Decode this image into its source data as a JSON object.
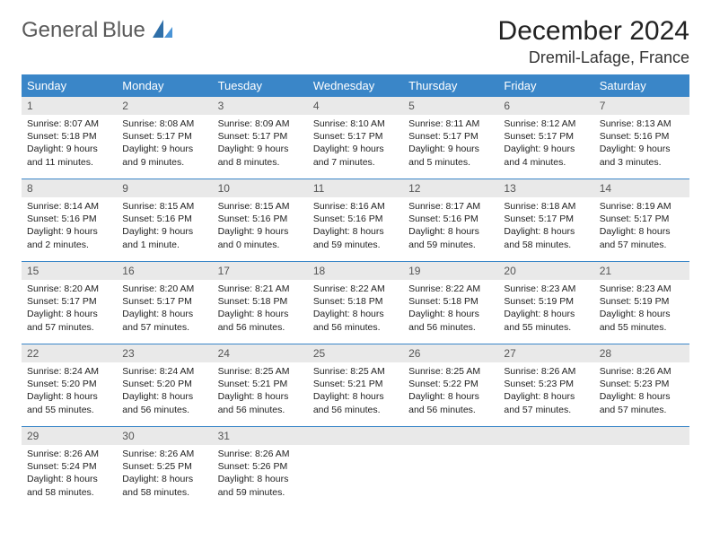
{
  "brand": {
    "word1": "General",
    "word2": "Blue"
  },
  "title": "December 2024",
  "location": "Dremil-Lafage, France",
  "style": {
    "header_bg": "#3a86c8",
    "header_text": "#ffffff",
    "daynum_bg": "#e9e9e9",
    "rule_color": "#3a86c8",
    "body_text": "#222222",
    "title_fontsize": 30,
    "location_fontsize": 18,
    "header_fontsize": 13,
    "daynum_fontsize": 12,
    "detail_fontsize": 10.5
  },
  "daysOfWeek": [
    "Sunday",
    "Monday",
    "Tuesday",
    "Wednesday",
    "Thursday",
    "Friday",
    "Saturday"
  ],
  "weeks": [
    [
      {
        "n": "1",
        "sunrise": "8:07 AM",
        "sunset": "5:18 PM",
        "daylight": "9 hours and 11 minutes."
      },
      {
        "n": "2",
        "sunrise": "8:08 AM",
        "sunset": "5:17 PM",
        "daylight": "9 hours and 9 minutes."
      },
      {
        "n": "3",
        "sunrise": "8:09 AM",
        "sunset": "5:17 PM",
        "daylight": "9 hours and 8 minutes."
      },
      {
        "n": "4",
        "sunrise": "8:10 AM",
        "sunset": "5:17 PM",
        "daylight": "9 hours and 7 minutes."
      },
      {
        "n": "5",
        "sunrise": "8:11 AM",
        "sunset": "5:17 PM",
        "daylight": "9 hours and 5 minutes."
      },
      {
        "n": "6",
        "sunrise": "8:12 AM",
        "sunset": "5:17 PM",
        "daylight": "9 hours and 4 minutes."
      },
      {
        "n": "7",
        "sunrise": "8:13 AM",
        "sunset": "5:16 PM",
        "daylight": "9 hours and 3 minutes."
      }
    ],
    [
      {
        "n": "8",
        "sunrise": "8:14 AM",
        "sunset": "5:16 PM",
        "daylight": "9 hours and 2 minutes."
      },
      {
        "n": "9",
        "sunrise": "8:15 AM",
        "sunset": "5:16 PM",
        "daylight": "9 hours and 1 minute."
      },
      {
        "n": "10",
        "sunrise": "8:15 AM",
        "sunset": "5:16 PM",
        "daylight": "9 hours and 0 minutes."
      },
      {
        "n": "11",
        "sunrise": "8:16 AM",
        "sunset": "5:16 PM",
        "daylight": "8 hours and 59 minutes."
      },
      {
        "n": "12",
        "sunrise": "8:17 AM",
        "sunset": "5:16 PM",
        "daylight": "8 hours and 59 minutes."
      },
      {
        "n": "13",
        "sunrise": "8:18 AM",
        "sunset": "5:17 PM",
        "daylight": "8 hours and 58 minutes."
      },
      {
        "n": "14",
        "sunrise": "8:19 AM",
        "sunset": "5:17 PM",
        "daylight": "8 hours and 57 minutes."
      }
    ],
    [
      {
        "n": "15",
        "sunrise": "8:20 AM",
        "sunset": "5:17 PM",
        "daylight": "8 hours and 57 minutes."
      },
      {
        "n": "16",
        "sunrise": "8:20 AM",
        "sunset": "5:17 PM",
        "daylight": "8 hours and 57 minutes."
      },
      {
        "n": "17",
        "sunrise": "8:21 AM",
        "sunset": "5:18 PM",
        "daylight": "8 hours and 56 minutes."
      },
      {
        "n": "18",
        "sunrise": "8:22 AM",
        "sunset": "5:18 PM",
        "daylight": "8 hours and 56 minutes."
      },
      {
        "n": "19",
        "sunrise": "8:22 AM",
        "sunset": "5:18 PM",
        "daylight": "8 hours and 56 minutes."
      },
      {
        "n": "20",
        "sunrise": "8:23 AM",
        "sunset": "5:19 PM",
        "daylight": "8 hours and 55 minutes."
      },
      {
        "n": "21",
        "sunrise": "8:23 AM",
        "sunset": "5:19 PM",
        "daylight": "8 hours and 55 minutes."
      }
    ],
    [
      {
        "n": "22",
        "sunrise": "8:24 AM",
        "sunset": "5:20 PM",
        "daylight": "8 hours and 55 minutes."
      },
      {
        "n": "23",
        "sunrise": "8:24 AM",
        "sunset": "5:20 PM",
        "daylight": "8 hours and 56 minutes."
      },
      {
        "n": "24",
        "sunrise": "8:25 AM",
        "sunset": "5:21 PM",
        "daylight": "8 hours and 56 minutes."
      },
      {
        "n": "25",
        "sunrise": "8:25 AM",
        "sunset": "5:21 PM",
        "daylight": "8 hours and 56 minutes."
      },
      {
        "n": "26",
        "sunrise": "8:25 AM",
        "sunset": "5:22 PM",
        "daylight": "8 hours and 56 minutes."
      },
      {
        "n": "27",
        "sunrise": "8:26 AM",
        "sunset": "5:23 PM",
        "daylight": "8 hours and 57 minutes."
      },
      {
        "n": "28",
        "sunrise": "8:26 AM",
        "sunset": "5:23 PM",
        "daylight": "8 hours and 57 minutes."
      }
    ],
    [
      {
        "n": "29",
        "sunrise": "8:26 AM",
        "sunset": "5:24 PM",
        "daylight": "8 hours and 58 minutes."
      },
      {
        "n": "30",
        "sunrise": "8:26 AM",
        "sunset": "5:25 PM",
        "daylight": "8 hours and 58 minutes."
      },
      {
        "n": "31",
        "sunrise": "8:26 AM",
        "sunset": "5:26 PM",
        "daylight": "8 hours and 59 minutes."
      },
      null,
      null,
      null,
      null
    ]
  ],
  "labels": {
    "sunrise": "Sunrise: ",
    "sunset": "Sunset: ",
    "daylight": "Daylight: "
  }
}
